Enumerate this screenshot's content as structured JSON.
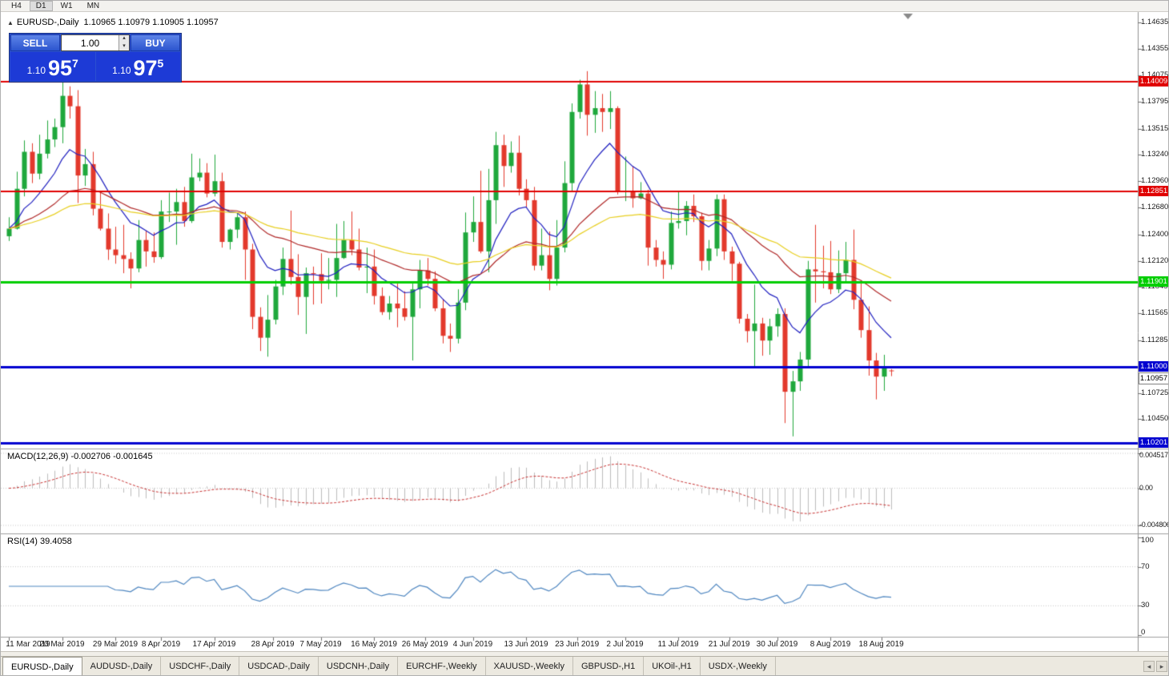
{
  "toolbar": {
    "timeframes": [
      {
        "label": "H4",
        "active": false
      },
      {
        "label": "D1",
        "active": true
      },
      {
        "label": "W1",
        "active": false
      },
      {
        "label": "MN",
        "active": false
      }
    ]
  },
  "chart": {
    "collapse_icon": "▲",
    "symbol_title": "EURUSD-,Daily",
    "ohlc_text": "1.10965 1.10979 1.10905 1.10957",
    "current_price": "1.10957"
  },
  "trade_panel": {
    "sell_label": "SELL",
    "buy_label": "BUY",
    "volume": "1.00",
    "sell_price": {
      "prefix": "1.10",
      "big": "95",
      "pip": "7"
    },
    "buy_price": {
      "prefix": "1.10",
      "big": "97",
      "pip": "5"
    }
  },
  "price_axis": {
    "ticks": [
      "1.14635",
      "1.14355",
      "1.14075",
      "1.13795",
      "1.13515",
      "1.13240",
      "1.12960",
      "1.12680",
      "1.12400",
      "1.12120",
      "1.11845",
      "1.11565",
      "1.11285",
      "1.10725",
      "1.10450"
    ]
  },
  "indicators": {
    "macd": {
      "label": "MACD(12,26,9) -0.002706 -0.001645",
      "scale": [
        "0.004517",
        "0.00",
        "-0.004806"
      ]
    },
    "rsi": {
      "label": "RSI(14) 39.4058",
      "scale": [
        "100",
        "70",
        "30",
        "0"
      ]
    }
  },
  "tabs": [
    {
      "label": "EURUSD-,Daily",
      "active": true
    },
    {
      "label": "AUDUSD-,Daily",
      "active": false
    },
    {
      "label": "USDCHF-,Daily",
      "active": false
    },
    {
      "label": "USDCAD-,Daily",
      "active": false
    },
    {
      "label": "USDCNH-,Daily",
      "active": false
    },
    {
      "label": "EURCHF-,Weekly",
      "active": false
    },
    {
      "label": "XAUUSD-,Weekly",
      "active": false
    },
    {
      "label": "GBPUSD-,H1",
      "active": false
    },
    {
      "label": "UKOil-,H1",
      "active": false
    },
    {
      "label": "USDX-,Weekly",
      "active": false
    }
  ],
  "chart_data": [
    {
      "type": "candlestick",
      "title": "EURUSD-,Daily",
      "last_ohlc": {
        "open": 1.10965,
        "high": 1.10979,
        "low": 1.10905,
        "close": 1.10957
      },
      "ylim": [
        1.1016,
        1.1469
      ],
      "colors": {
        "up": "#1fa83c",
        "down": "#e3392c",
        "ma_fast": "#2020c0",
        "ma_mid": "#b02828",
        "ma_slow": "#e8cf20"
      },
      "moving_averages": [
        {
          "period": 10,
          "color_key": "ma_fast"
        },
        {
          "period": 30,
          "color_key": "ma_mid"
        },
        {
          "period": 55,
          "color_key": "ma_slow"
        }
      ],
      "hlines": [
        {
          "price": 1.14009,
          "color": "#e00000",
          "width": 2,
          "label": "1.14009"
        },
        {
          "price": 1.12851,
          "color": "#e00000",
          "width": 2,
          "label": "1.12851"
        },
        {
          "price": 1.11901,
          "color": "#00ce00",
          "width": 3,
          "label": "1.11901"
        },
        {
          "price": 1.11,
          "color": "#0000d0",
          "width": 3,
          "label": "1.11000"
        },
        {
          "price": 1.10201,
          "color": "#0000d0",
          "width": 3,
          "label": "1.10201"
        }
      ],
      "x_labels": [
        {
          "text": "11 Mar 2019",
          "i": 0
        },
        {
          "text": "20 Mar 2019",
          "i": 7
        },
        {
          "text": "29 Mar 2019",
          "i": 14
        },
        {
          "text": "8 Apr 2019",
          "i": 20
        },
        {
          "text": "17 Apr 2019",
          "i": 27
        },
        {
          "text": "28 Apr 2019",
          "i": 34.7
        },
        {
          "text": "7 May 2019",
          "i": 41
        },
        {
          "text": "16 May 2019",
          "i": 48
        },
        {
          "text": "26 May 2019",
          "i": 54.7
        },
        {
          "text": "4 Jun 2019",
          "i": 61
        },
        {
          "text": "13 Jun 2019",
          "i": 68
        },
        {
          "text": "23 Jun 2019",
          "i": 74.7
        },
        {
          "text": "2 Jul 2019",
          "i": 81
        },
        {
          "text": "11 Jul 2019",
          "i": 88
        },
        {
          "text": "21 Jul 2019",
          "i": 94.7
        },
        {
          "text": "30 Jul 2019",
          "i": 101
        },
        {
          "text": "8 Aug 2019",
          "i": 108
        },
        {
          "text": "18 Aug 2019",
          "i": 114.7
        }
      ],
      "candles": [
        [
          1.1238,
          1.1258,
          1.1233,
          1.1246
        ],
        [
          1.1246,
          1.1306,
          1.1245,
          1.1288
        ],
        [
          1.1288,
          1.1339,
          1.128,
          1.1327
        ],
        [
          1.1327,
          1.1336,
          1.1294,
          1.1304
        ],
        [
          1.1304,
          1.1345,
          1.1298,
          1.1325
        ],
        [
          1.1325,
          1.136,
          1.132,
          1.134
        ],
        [
          1.134,
          1.1362,
          1.1332,
          1.1353
        ],
        [
          1.1353,
          1.1404,
          1.1336,
          1.1386
        ],
        [
          1.1386,
          1.1396,
          1.1362,
          1.1375
        ],
        [
          1.1375,
          1.1392,
          1.1273,
          1.1302
        ],
        [
          1.1302,
          1.133,
          1.1291,
          1.1314
        ],
        [
          1.1314,
          1.1327,
          1.126,
          1.1267
        ],
        [
          1.1267,
          1.1286,
          1.1244,
          1.1246
        ],
        [
          1.1246,
          1.1262,
          1.1213,
          1.1224
        ],
        [
          1.1224,
          1.1248,
          1.1209,
          1.1218
        ],
        [
          1.1218,
          1.125,
          1.1199,
          1.1214
        ],
        [
          1.1214,
          1.1221,
          1.1183,
          1.1204
        ],
        [
          1.1204,
          1.1255,
          1.12,
          1.1234
        ],
        [
          1.1234,
          1.1244,
          1.1206,
          1.1222
        ],
        [
          1.1222,
          1.1242,
          1.121,
          1.1216
        ],
        [
          1.1216,
          1.1276,
          1.1214,
          1.1264
        ],
        [
          1.1264,
          1.1284,
          1.1253,
          1.1264
        ],
        [
          1.1264,
          1.1288,
          1.1229,
          1.1274
        ],
        [
          1.1274,
          1.129,
          1.1248,
          1.1254
        ],
        [
          1.1254,
          1.1325,
          1.1252,
          1.13
        ],
        [
          1.13,
          1.132,
          1.1296,
          1.1305
        ],
        [
          1.1305,
          1.1315,
          1.1279,
          1.1283
        ],
        [
          1.1283,
          1.1324,
          1.128,
          1.1296
        ],
        [
          1.1296,
          1.1305,
          1.1226,
          1.1232
        ],
        [
          1.1232,
          1.1246,
          1.1224,
          1.1245
        ],
        [
          1.1245,
          1.1262,
          1.1236,
          1.1258
        ],
        [
          1.1258,
          1.1264,
          1.1192,
          1.1224
        ],
        [
          1.1224,
          1.123,
          1.114,
          1.1153
        ],
        [
          1.1153,
          1.1163,
          1.1117,
          1.1131
        ],
        [
          1.1131,
          1.1176,
          1.1111,
          1.115
        ],
        [
          1.115,
          1.1192,
          1.1145,
          1.1185
        ],
        [
          1.1185,
          1.1226,
          1.1176,
          1.1214
        ],
        [
          1.1214,
          1.1265,
          1.1187,
          1.1195
        ],
        [
          1.1195,
          1.1219,
          1.1155,
          1.1174
        ],
        [
          1.1174,
          1.1205,
          1.1135,
          1.1199
        ],
        [
          1.1199,
          1.1206,
          1.1166,
          1.1198
        ],
        [
          1.1198,
          1.122,
          1.1167,
          1.1191
        ],
        [
          1.1191,
          1.1215,
          1.1182,
          1.1192
        ],
        [
          1.1192,
          1.1251,
          1.1174,
          1.1215
        ],
        [
          1.1215,
          1.1254,
          1.1214,
          1.1234
        ],
        [
          1.1234,
          1.1264,
          1.1218,
          1.1224
        ],
        [
          1.1224,
          1.1246,
          1.1202,
          1.1205
        ],
        [
          1.1205,
          1.1226,
          1.1178,
          1.1206
        ],
        [
          1.1206,
          1.1224,
          1.1166,
          1.1175
        ],
        [
          1.1175,
          1.1184,
          1.1155,
          1.1158
        ],
        [
          1.1158,
          1.1175,
          1.115,
          1.1167
        ],
        [
          1.1167,
          1.1188,
          1.1142,
          1.1162
        ],
        [
          1.1162,
          1.118,
          1.1149,
          1.1153
        ],
        [
          1.1153,
          1.1188,
          1.1107,
          1.1182
        ],
        [
          1.1182,
          1.1213,
          1.1162,
          1.1202
        ],
        [
          1.1202,
          1.1215,
          1.1186,
          1.1193
        ],
        [
          1.1193,
          1.1201,
          1.1159,
          1.1162
        ],
        [
          1.1162,
          1.1172,
          1.1125,
          1.1133
        ],
        [
          1.1133,
          1.1146,
          1.1116,
          1.113
        ],
        [
          1.113,
          1.1182,
          1.1125,
          1.1168
        ],
        [
          1.1168,
          1.1263,
          1.116,
          1.1242
        ],
        [
          1.1242,
          1.128,
          1.1232,
          1.1253
        ],
        [
          1.1253,
          1.1307,
          1.122,
          1.1222
        ],
        [
          1.1222,
          1.1309,
          1.12,
          1.1276
        ],
        [
          1.1276,
          1.1348,
          1.1251,
          1.1334
        ],
        [
          1.1334,
          1.1345,
          1.129,
          1.1312
        ],
        [
          1.1312,
          1.1338,
          1.1305,
          1.1326
        ],
        [
          1.1326,
          1.1344,
          1.1281,
          1.1288
        ],
        [
          1.1288,
          1.1298,
          1.1268,
          1.1276
        ],
        [
          1.1276,
          1.129,
          1.1202,
          1.1207
        ],
        [
          1.1207,
          1.1246,
          1.1202,
          1.1218
        ],
        [
          1.1218,
          1.1243,
          1.1181,
          1.1193
        ],
        [
          1.1193,
          1.1255,
          1.1186,
          1.1226
        ],
        [
          1.1226,
          1.1317,
          1.1221,
          1.1294
        ],
        [
          1.1294,
          1.1378,
          1.1285,
          1.1369
        ],
        [
          1.1369,
          1.1403,
          1.1362,
          1.1398
        ],
        [
          1.1398,
          1.1412,
          1.1344,
          1.1366
        ],
        [
          1.1366,
          1.1391,
          1.1347,
          1.1373
        ],
        [
          1.1373,
          1.1388,
          1.1348,
          1.1369
        ],
        [
          1.1369,
          1.1391,
          1.1351,
          1.1373
        ],
        [
          1.1373,
          1.1375,
          1.1282,
          1.1285
        ],
        [
          1.1285,
          1.1322,
          1.1275,
          1.1286
        ],
        [
          1.1286,
          1.1312,
          1.1268,
          1.1278
        ],
        [
          1.1278,
          1.1295,
          1.1277,
          1.1283
        ],
        [
          1.1283,
          1.1287,
          1.1207,
          1.1226
        ],
        [
          1.1226,
          1.1234,
          1.1206,
          1.1213
        ],
        [
          1.1213,
          1.1222,
          1.1193,
          1.1208
        ],
        [
          1.1208,
          1.1264,
          1.1203,
          1.1252
        ],
        [
          1.1252,
          1.1286,
          1.1246,
          1.1254
        ],
        [
          1.1254,
          1.1275,
          1.1239,
          1.127
        ],
        [
          1.127,
          1.1282,
          1.1253,
          1.1259
        ],
        [
          1.1259,
          1.1263,
          1.1202,
          1.1212
        ],
        [
          1.1212,
          1.1234,
          1.1202,
          1.1225
        ],
        [
          1.1225,
          1.1282,
          1.1217,
          1.1277
        ],
        [
          1.1277,
          1.1282,
          1.1213,
          1.1222
        ],
        [
          1.1222,
          1.1227,
          1.1191,
          1.1209
        ],
        [
          1.1209,
          1.1211,
          1.1146,
          1.1151
        ],
        [
          1.1151,
          1.1156,
          1.1126,
          1.1138
        ],
        [
          1.1138,
          1.1187,
          1.1101,
          1.1146
        ],
        [
          1.1146,
          1.1152,
          1.1112,
          1.1128
        ],
        [
          1.1128,
          1.1151,
          1.1113,
          1.1143
        ],
        [
          1.1143,
          1.1162,
          1.1132,
          1.1156
        ],
        [
          1.1156,
          1.1162,
          1.1041,
          1.1074
        ],
        [
          1.1074,
          1.1096,
          1.1027,
          1.1085
        ],
        [
          1.1085,
          1.1116,
          1.1075,
          1.1108
        ],
        [
          1.1108,
          1.1212,
          1.1101,
          1.1203
        ],
        [
          1.1203,
          1.125,
          1.1168,
          1.1201
        ],
        [
          1.1201,
          1.1228,
          1.1183,
          1.12
        ],
        [
          1.12,
          1.1233,
          1.1177,
          1.1182
        ],
        [
          1.1182,
          1.1223,
          1.1178,
          1.1199
        ],
        [
          1.1199,
          1.1232,
          1.119,
          1.1213
        ],
        [
          1.1213,
          1.1245,
          1.1161,
          1.1171
        ],
        [
          1.1171,
          1.1191,
          1.1131,
          1.1139
        ],
        [
          1.1139,
          1.1164,
          1.1091,
          1.1107
        ],
        [
          1.1107,
          1.1115,
          1.1066,
          1.109
        ],
        [
          1.109,
          1.1113,
          1.1075,
          1.11
        ],
        [
          1.10965,
          1.10979,
          1.10905,
          1.10957
        ]
      ]
    },
    {
      "type": "macd",
      "params": [
        12,
        26,
        9
      ],
      "current_values": [
        -0.002706,
        -0.001645
      ],
      "ylim": [
        -0.004806,
        0.004517
      ],
      "histogram_color": "#bdbdbd",
      "signal_color": "#c83232",
      "signal_style": "dashed"
    },
    {
      "type": "line",
      "name": "RSI",
      "period": 14,
      "current_value": 39.4058,
      "ylim": [
        0,
        100
      ],
      "levels": [
        70,
        30
      ],
      "line_color": "#4e86c0"
    }
  ]
}
